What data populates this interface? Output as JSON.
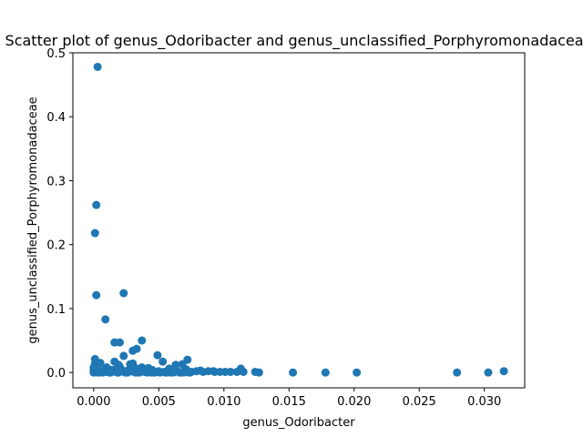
{
  "chart_data": {
    "type": "scatter",
    "title": "Scatter plot of genus_Odoribacter and genus_unclassified_Porphyromonadaceae",
    "xlabel": "genus_Odoribacter",
    "ylabel": "genus_unclassified_Porphyromonadaceae",
    "xlim": [
      -0.0016,
      0.0331
    ],
    "ylim": [
      -0.024,
      0.5
    ],
    "xticks": [
      0.0,
      0.005,
      0.01,
      0.015,
      0.02,
      0.025,
      0.03
    ],
    "xtick_labels": [
      "0.000",
      "0.005",
      "0.010",
      "0.015",
      "0.020",
      "0.025",
      "0.030"
    ],
    "yticks": [
      0.0,
      0.1,
      0.2,
      0.3,
      0.4,
      0.5
    ],
    "ytick_labels": [
      "0.0",
      "0.1",
      "0.2",
      "0.3",
      "0.4",
      "0.5"
    ],
    "grid": false,
    "marker_color": "#1f77b4",
    "series": [
      {
        "x": [
          0.0003,
          0.0002,
          0.0001,
          0.0002,
          0.0023,
          0.0009,
          0.0016,
          0.002,
          0.0037,
          0.0033,
          0.003,
          0.0023,
          0.0049,
          0.0072,
          0.0001,
          0.0001,
          0.0005,
          0.0016,
          0.0028,
          0.003,
          0.0019,
          0.0037,
          0.0053,
          0.0063,
          0.0003,
          0.001,
          0.002,
          0.0033,
          0.0042,
          0.0058,
          0.0068,
          0.0113,
          0.0003,
          0.0012,
          0.0026,
          0.0045,
          0.0071,
          0.0082,
          0.0092,
          0.0,
          0.0004,
          0.0008,
          0.0015,
          0.0022,
          0.0029,
          0.0036,
          0.0043,
          0.005,
          0.0057,
          0.0064,
          0.007,
          0.0075,
          0.0079,
          0.0084,
          0.0088,
          0.0093,
          0.0097,
          0.0101,
          0.0105,
          0.011,
          0.0115,
          0.0124,
          0.0127,
          0.0153,
          0.0178,
          0.0202,
          0.0279,
          0.0303,
          0.0315,
          0.0001,
          0.0006,
          0.0011,
          0.0017,
          0.0024,
          0.0032,
          0.0039,
          0.0047,
          0.0055,
          0.0061,
          0.0067,
          0.0003,
          0.0007,
          0.0013,
          0.0019,
          0.0026,
          0.0034,
          0.0041,
          0.0051,
          0.0059,
          0.0069,
          0.0074,
          0.0002,
          0.0009,
          0.0014,
          0.0021,
          0.0031,
          0.0044,
          0.0056,
          0.0066,
          0.0,
          0.0001,
          0.0002,
          0.0004,
          0.0006,
          0.0008,
          0.001,
          0.0012,
          0.0,
          0.0001,
          0.0003,
          0.0005,
          0.0,
          0.0002,
          0.0004,
          0.0018,
          0.0025,
          0.0035,
          0.0046,
          0.0054,
          0.0062,
          0.0073
        ],
        "y": [
          0.478,
          0.262,
          0.218,
          0.121,
          0.124,
          0.083,
          0.047,
          0.047,
          0.05,
          0.037,
          0.034,
          0.026,
          0.027,
          0.02,
          0.021,
          0.014,
          0.015,
          0.017,
          0.013,
          0.014,
          0.012,
          0.008,
          0.017,
          0.012,
          0.011,
          0.008,
          0.009,
          0.006,
          0.007,
          0.006,
          0.013,
          0.006,
          0.005,
          0.004,
          0.003,
          0.004,
          0.005,
          0.003,
          0.002,
          0.003,
          0.002,
          0.003,
          0.004,
          0.003,
          0.002,
          0.003,
          0.002,
          0.002,
          0.003,
          0.002,
          0.002,
          0.001,
          0.002,
          0.001,
          0.002,
          0.001,
          0.001,
          0.001,
          0.001,
          0.001,
          0.001,
          0.001,
          0.0,
          0.0,
          0.0,
          0.0,
          0.0,
          0.0,
          0.002,
          0.001,
          0.001,
          0.001,
          0.001,
          0.0,
          0.0,
          0.001,
          0.0,
          0.0,
          0.0,
          0.0,
          0.0,
          0.0,
          0.0,
          0.0,
          0.0,
          0.0,
          0.0,
          0.0,
          0.0,
          0.0,
          0.0,
          0.009,
          0.006,
          0.004,
          0.002,
          0.001,
          0.0,
          0.0,
          0.0,
          0.001,
          0.004,
          0.007,
          0.002,
          0.001,
          0.003,
          0.001,
          0.0,
          0.0,
          0.01,
          0.005,
          0.002,
          0.008,
          0.001,
          0.0,
          0.0,
          0.0,
          0.0,
          0.0,
          0.001,
          0.001,
          0.0
        ]
      }
    ]
  }
}
